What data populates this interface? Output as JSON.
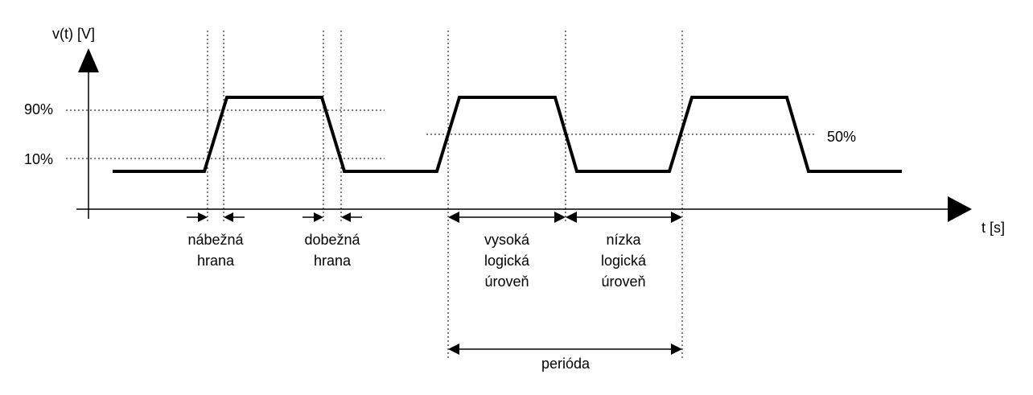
{
  "axes": {
    "y_label": "v(t) [V]",
    "x_label": "t [s]"
  },
  "levels": {
    "high": "90%",
    "low": "10%",
    "mid": "50%"
  },
  "labels": {
    "rising_edge": [
      "nábežná",
      "hrana"
    ],
    "falling_edge": [
      "dobežná",
      "hrana"
    ],
    "high_level": [
      "vysoká",
      "logická",
      "úroveň"
    ],
    "low_level": [
      "nízka",
      "logická",
      "úroveň"
    ],
    "period": "perióda"
  }
}
